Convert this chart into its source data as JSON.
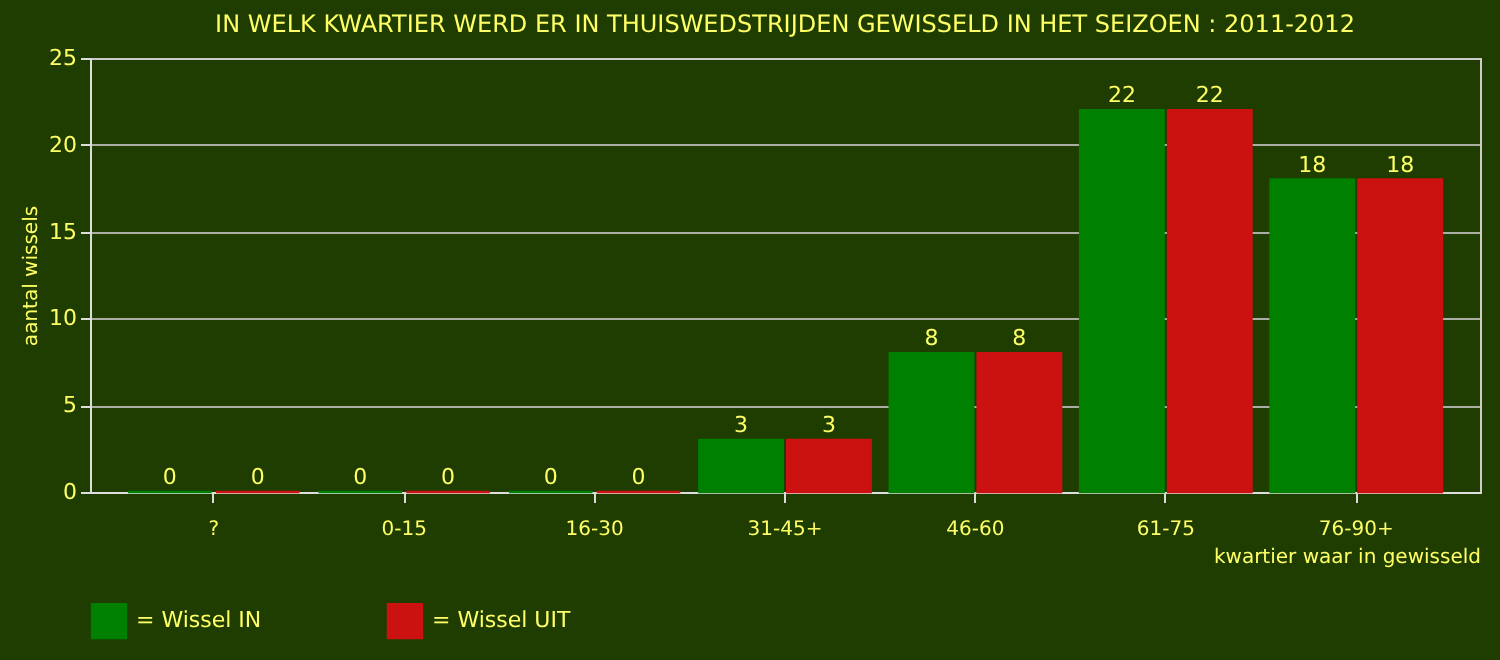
{
  "chart_data": {
    "type": "bar",
    "title": "IN WELK KWARTIER WERD ER IN THUISWEDSTRIJDEN GEWISSELD IN HET SEIZOEN : 2011-2012",
    "xlabel": "kwartier waar in gewisseld",
    "ylabel": "aantal wissels",
    "categories": [
      "?",
      "0-15",
      "16-30",
      "31-45+",
      "46-60",
      "61-75",
      "76-90+"
    ],
    "series": [
      {
        "name": "= Wissel IN",
        "color": "#008000",
        "values": [
          0,
          0,
          0,
          3,
          8,
          22,
          18
        ]
      },
      {
        "name": "= Wissel UIT",
        "color": "#cc1111",
        "values": [
          0,
          0,
          0,
          3,
          8,
          22,
          18
        ]
      }
    ],
    "ylim": [
      0,
      25
    ],
    "yticks": [
      0,
      5,
      10,
      15,
      20,
      25
    ],
    "grid": "y",
    "legend": "bottom",
    "data_labels": true
  }
}
